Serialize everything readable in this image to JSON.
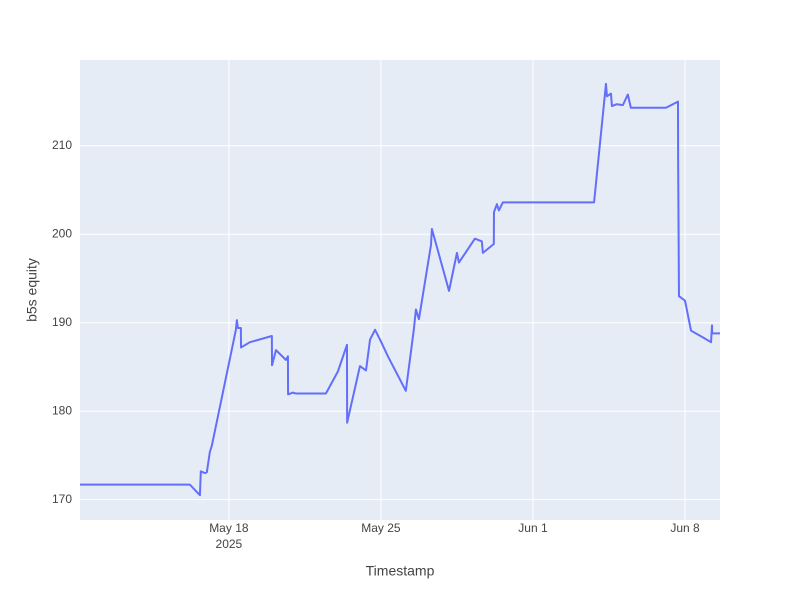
{
  "chart_data": {
    "type": "line",
    "x_label": "Timestamp",
    "y_label": "b5s equity",
    "x": [
      "2025-05-11T03:30",
      "2025-05-16T04:50",
      "2025-05-16T16:00",
      "2025-05-16T17:00",
      "2025-05-16T21:30",
      "2025-05-16T23:40",
      "2025-05-17T03:00",
      "2025-05-17T05:10",
      "2025-05-18T07:45",
      "2025-05-18T08:50",
      "2025-05-18T10:00",
      "2025-05-18T13:15",
      "2025-05-18T13:25",
      "2025-05-18T23:15",
      "2025-05-19T23:30",
      "2025-05-19T23:40",
      "2025-05-20T04:00",
      "2025-05-20T15:00",
      "2025-05-20T17:15",
      "2025-05-20T17:25",
      "2025-05-20T22:45",
      "2025-05-21T02:00",
      "2025-05-22T11:15",
      "2025-05-23T00:30",
      "2025-05-23T10:30",
      "2025-05-23T10:40",
      "2025-05-24T00:50",
      "2025-05-24T07:30",
      "2025-05-24T12:00",
      "2025-05-24T17:30",
      "2025-05-24T23:00",
      "2025-05-25T07:45",
      "2025-05-26T03:30",
      "2025-05-26T08:00",
      "2025-05-26T12:20",
      "2025-05-26T14:40",
      "2025-05-26T18:00",
      "2025-05-27T07:20",
      "2025-05-27T08:20",
      "2025-05-28T03:15",
      "2025-05-28T12:00",
      "2025-05-28T14:10",
      "2025-05-29T07:50",
      "2025-05-29T15:30",
      "2025-05-29T16:40",
      "2025-05-30T04:45",
      "2025-05-30T04:55",
      "2025-05-30T08:10",
      "2025-05-30T10:20",
      "2025-05-30T14:45",
      "2025-06-03T19:30",
      "2025-06-04T08:40",
      "2025-06-04T09:45",
      "2025-06-04T14:10",
      "2025-06-04T15:15",
      "2025-06-04T20:45",
      "2025-06-05T03:20",
      "2025-06-05T08:50",
      "2025-06-05T12:10",
      "2025-06-07T03:00",
      "2025-06-07T16:15",
      "2025-06-07T16:25",
      "2025-06-07T17:20",
      "2025-06-08T00:00",
      "2025-06-08T06:40",
      "2025-06-08T18:50",
      "2025-06-09T04:45",
      "2025-06-09T05:50",
      "2025-06-09T06:00",
      "2025-06-09T14:40"
    ],
    "series": [
      {
        "name": "b5s equity",
        "color": "#636efa",
        "values": [
          171.7,
          171.7,
          170.5,
          173.2,
          173.0,
          173.1,
          175.4,
          176.1,
          189.2,
          190.3,
          189.4,
          189.4,
          187.2,
          187.8,
          188.5,
          185.2,
          186.9,
          185.8,
          186.2,
          181.9,
          182.1,
          182.0,
          182.0,
          184.5,
          187.5,
          178.7,
          185.1,
          184.6,
          188.1,
          189.2,
          188.1,
          186.2,
          182.3,
          185.8,
          189.2,
          191.5,
          190.4,
          198.8,
          200.6,
          193.6,
          197.9,
          196.8,
          199.5,
          199.2,
          197.9,
          198.9,
          202.5,
          203.4,
          202.7,
          203.6,
          203.6,
          217.0,
          215.6,
          215.9,
          214.5,
          214.7,
          214.6,
          215.8,
          214.3,
          214.3,
          215.0,
          208.4,
          193.0,
          192.5,
          189.1,
          188.4,
          187.8,
          189.7,
          188.8,
          188.8
        ]
      }
    ],
    "xlim": [
      "2025-05-11T03:30",
      "2025-06-09T14:40"
    ],
    "xticks": [
      {
        "value": "2025-05-18T00:00",
        "label": "May 18"
      },
      {
        "value": "2025-05-25T00:00",
        "label": "May 25"
      },
      {
        "value": "2025-06-01T00:00",
        "label": "Jun 1"
      },
      {
        "value": "2025-06-08T00:00",
        "label": "Jun 8"
      }
    ],
    "x_year": "2025",
    "ylim": [
      167.7,
      219.7
    ],
    "yticks": [
      170,
      180,
      190,
      200,
      210
    ],
    "grid": true
  }
}
